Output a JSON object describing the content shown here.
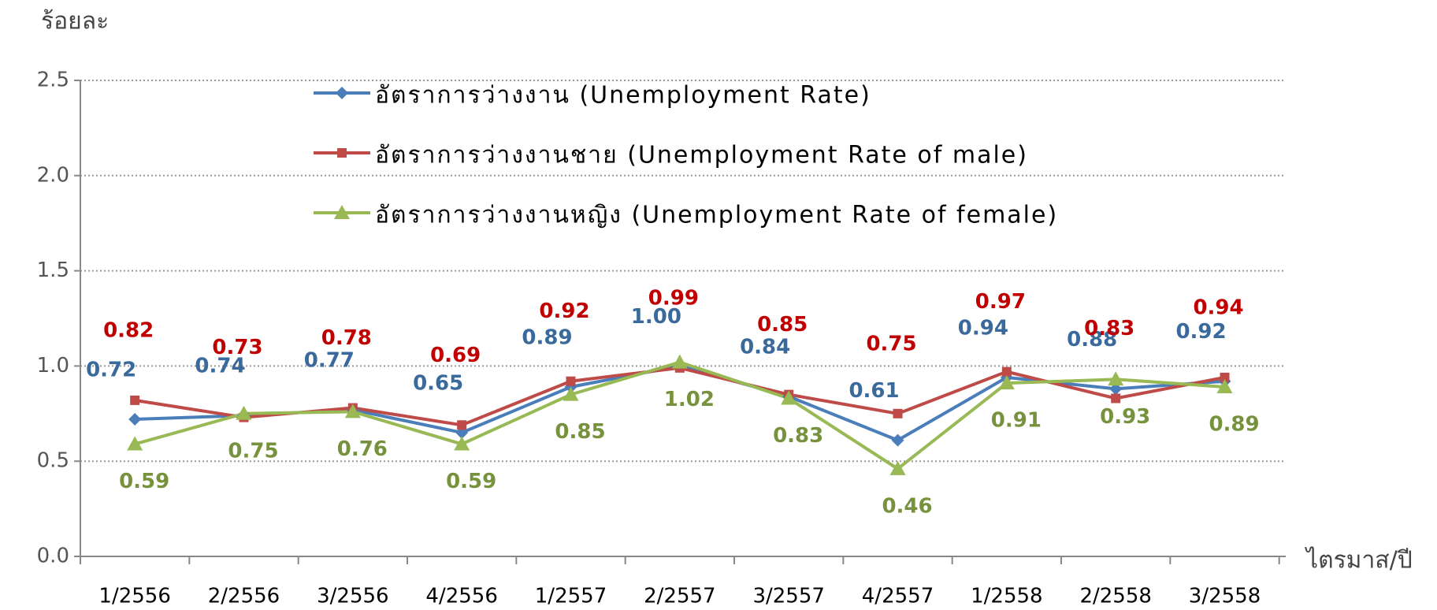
{
  "chart_data": {
    "type": "line",
    "y_label": "ร้อยละ",
    "x_label": "ไตรมาส/ปี",
    "categories": [
      "1/2556",
      "2/2556",
      "3/2556",
      "4/2556",
      "1/2557",
      "2/2557",
      "3/2557",
      "4/2557",
      "1/2558",
      "2/2558",
      "3/2558"
    ],
    "series": [
      {
        "name": "อัตราการว่างงาน (Unemployment Rate)",
        "color": "#4a7ebb",
        "marker": "diamond",
        "values": [
          0.72,
          0.74,
          0.77,
          0.65,
          0.89,
          1.0,
          0.84,
          0.61,
          0.94,
          0.88,
          0.92
        ],
        "value_labels": [
          "0.72",
          "0.74",
          "0.77",
          "0.65",
          "0.89",
          "1.00",
          "0.84",
          "0.61",
          "0.94",
          "0.88",
          "0.92"
        ]
      },
      {
        "name": "อัตราการว่างงานชาย (Unemployment Rate of male)",
        "color": "#be4b48",
        "marker": "square",
        "values": [
          0.82,
          0.73,
          0.78,
          0.69,
          0.92,
          0.99,
          0.85,
          0.75,
          0.97,
          0.83,
          0.94
        ],
        "value_labels": [
          "0.82",
          "0.73",
          "0.78",
          "0.69",
          "0.92",
          "0.99",
          "0.85",
          "0.75",
          "0.97",
          "0.83",
          "0.94"
        ]
      },
      {
        "name": "อัตราการว่างงานหญิง (Unemployment Rate of female)",
        "color": "#98b954",
        "marker": "triangle",
        "values": [
          0.59,
          0.75,
          0.76,
          0.59,
          0.85,
          1.02,
          0.83,
          0.46,
          0.91,
          0.93,
          0.89
        ],
        "value_labels": [
          "0.59",
          "0.75",
          "0.76",
          "0.59",
          "0.85",
          "1.02",
          "0.83",
          "0.46",
          "0.91",
          "0.93",
          "0.89"
        ]
      }
    ],
    "ylim": [
      0,
      2.5
    ],
    "yticks": [
      {
        "value": 0,
        "label": "0.0"
      },
      0.5,
      {
        "value": 1,
        "label": "1.0"
      },
      1.5,
      {
        "value": 2,
        "label": "2.0"
      },
      2.5
    ],
    "grid": true
  }
}
